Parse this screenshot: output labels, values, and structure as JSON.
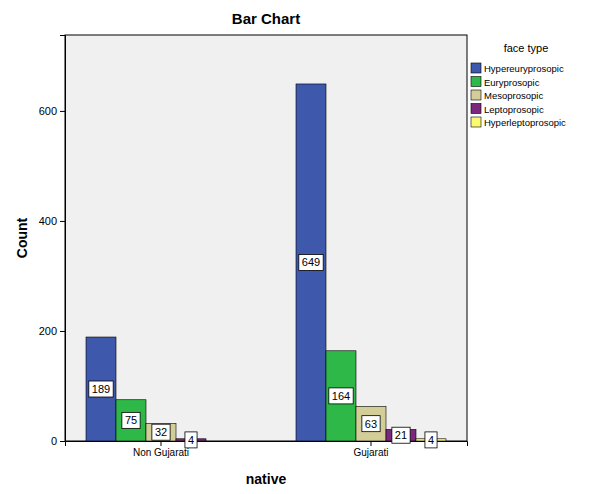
{
  "chart_data": {
    "type": "bar",
    "title": "Bar Chart",
    "x_label": "native",
    "y_label": "Count",
    "legend_title": "face type",
    "categories": [
      "Non Gujarati",
      "Gujarati"
    ],
    "series": [
      {
        "name": "Hypereuryprosopic",
        "color": "#3e58ac",
        "values": [
          189,
          649
        ]
      },
      {
        "name": "Euryprosopic",
        "color": "#2eb848",
        "values": [
          75,
          164
        ]
      },
      {
        "name": "Mesoprosopic",
        "color": "#d3ce97",
        "values": [
          32,
          63
        ]
      },
      {
        "name": "Leptoprosopic",
        "color": "#7c287d",
        "values": [
          4,
          21
        ]
      },
      {
        "name": "Hyperleptoprosopic",
        "color": "#fbf873",
        "values": [
          null,
          4
        ]
      }
    ],
    "ylim": [
      0,
      738
    ],
    "yticks": [
      0,
      200,
      400,
      600
    ],
    "grid": false,
    "legend": "upper right",
    "data_labels": true
  }
}
